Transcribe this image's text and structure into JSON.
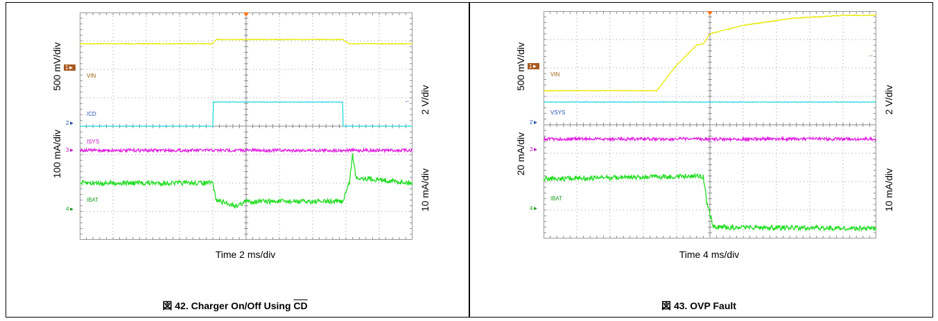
{
  "colors": {
    "vin": "#e8e800",
    "cd": "#26d9e0",
    "isys": "#e020e0",
    "ibat": "#22dd22",
    "vin_label": "#a06010",
    "cd_label": "#1f4fb0",
    "isys_label": "#c010c0",
    "ibat_label": "#1a9a1a",
    "marker1": "#a85a20",
    "trigger": "#ff6a10",
    "grid": "#9a9a9a"
  },
  "charts": [
    {
      "id": "left",
      "left_scale_top": "500 mV/div",
      "left_scale_bottom": "100 mA/div",
      "right_scale_top": "2 V/div",
      "right_scale_bottom": "10 mA/div",
      "time_label": "Time 2 ms/div",
      "caption_prefix": "図 42. Charger On/Off Using ",
      "caption_overline": "CD",
      "channel_markers": [
        "1",
        "2",
        "3",
        "4"
      ],
      "trace_labels": [
        "VIN",
        "/CD",
        "ISYS",
        "IBAT"
      ]
    },
    {
      "id": "right",
      "left_scale_top": "500 mV/div",
      "left_scale_bottom": "20 mA/div",
      "right_scale_top": "2 V/div",
      "right_scale_bottom": "10 mA/div",
      "time_label": "Time 4 ms/div",
      "caption_prefix": "図 43. OVP Fault",
      "caption_overline": "",
      "channel_markers": [
        "1",
        "2",
        "3",
        "4"
      ],
      "trace_labels": [
        "VIN",
        "VSYS",
        "ISYS",
        "IBAT"
      ]
    }
  ],
  "chart_data": [
    {
      "type": "line",
      "title": "図 42. Charger On/Off Using CD",
      "xlabel": "Time 2 ms/div",
      "x_divisions": 10,
      "y_divisions": 8,
      "grid": true,
      "series": [
        {
          "name": "VIN",
          "unit": "500 mV/div",
          "x": [
            0,
            4.0,
            4.1,
            7.9,
            8.1,
            10
          ],
          "y": [
            6.9,
            6.9,
            7.05,
            7.05,
            6.9,
            6.9
          ]
        },
        {
          "name": "/CD",
          "unit": "2 V/div",
          "x": [
            0,
            4.0,
            4.0,
            7.9,
            7.9,
            10
          ],
          "y": [
            4.0,
            4.0,
            4.85,
            4.85,
            4.0,
            4.0
          ]
        },
        {
          "name": "ISYS",
          "unit": "100 mA/div",
          "x": [
            0,
            10
          ],
          "y": [
            3.15,
            3.15
          ]
        },
        {
          "name": "IBAT",
          "unit": "10 mA/div",
          "x": [
            0,
            4.0,
            4.1,
            4.7,
            5.0,
            7.9,
            8.1,
            8.2,
            8.3,
            10
          ],
          "y": [
            2.0,
            2.0,
            1.4,
            1.2,
            1.35,
            1.35,
            2.0,
            3.0,
            2.2,
            2.0
          ]
        }
      ]
    },
    {
      "type": "line",
      "title": "図 43. OVP Fault",
      "xlabel": "Time 4 ms/div",
      "x_divisions": 10,
      "y_divisions": 8,
      "grid": true,
      "series": [
        {
          "name": "VIN",
          "unit": "500 mV/div",
          "x": [
            0,
            3.4,
            4.0,
            4.6,
            4.8,
            5.0,
            6.0,
            7.5,
            9.0,
            10
          ],
          "y": [
            5.2,
            5.2,
            6.1,
            6.8,
            6.85,
            7.2,
            7.5,
            7.75,
            7.85,
            7.85
          ]
        },
        {
          "name": "VSYS",
          "unit": "2 V/div",
          "x": [
            0,
            10
          ],
          "y": [
            4.8,
            4.8
          ]
        },
        {
          "name": "ISYS",
          "unit": "20 mA/div",
          "x": [
            0,
            10
          ],
          "y": [
            3.5,
            3.5
          ]
        },
        {
          "name": "IBAT",
          "unit": "10 mA/div",
          "x": [
            0,
            4.8,
            4.9,
            5.1,
            10
          ],
          "y": [
            2.1,
            2.2,
            1.3,
            0.4,
            0.35
          ]
        }
      ]
    }
  ]
}
